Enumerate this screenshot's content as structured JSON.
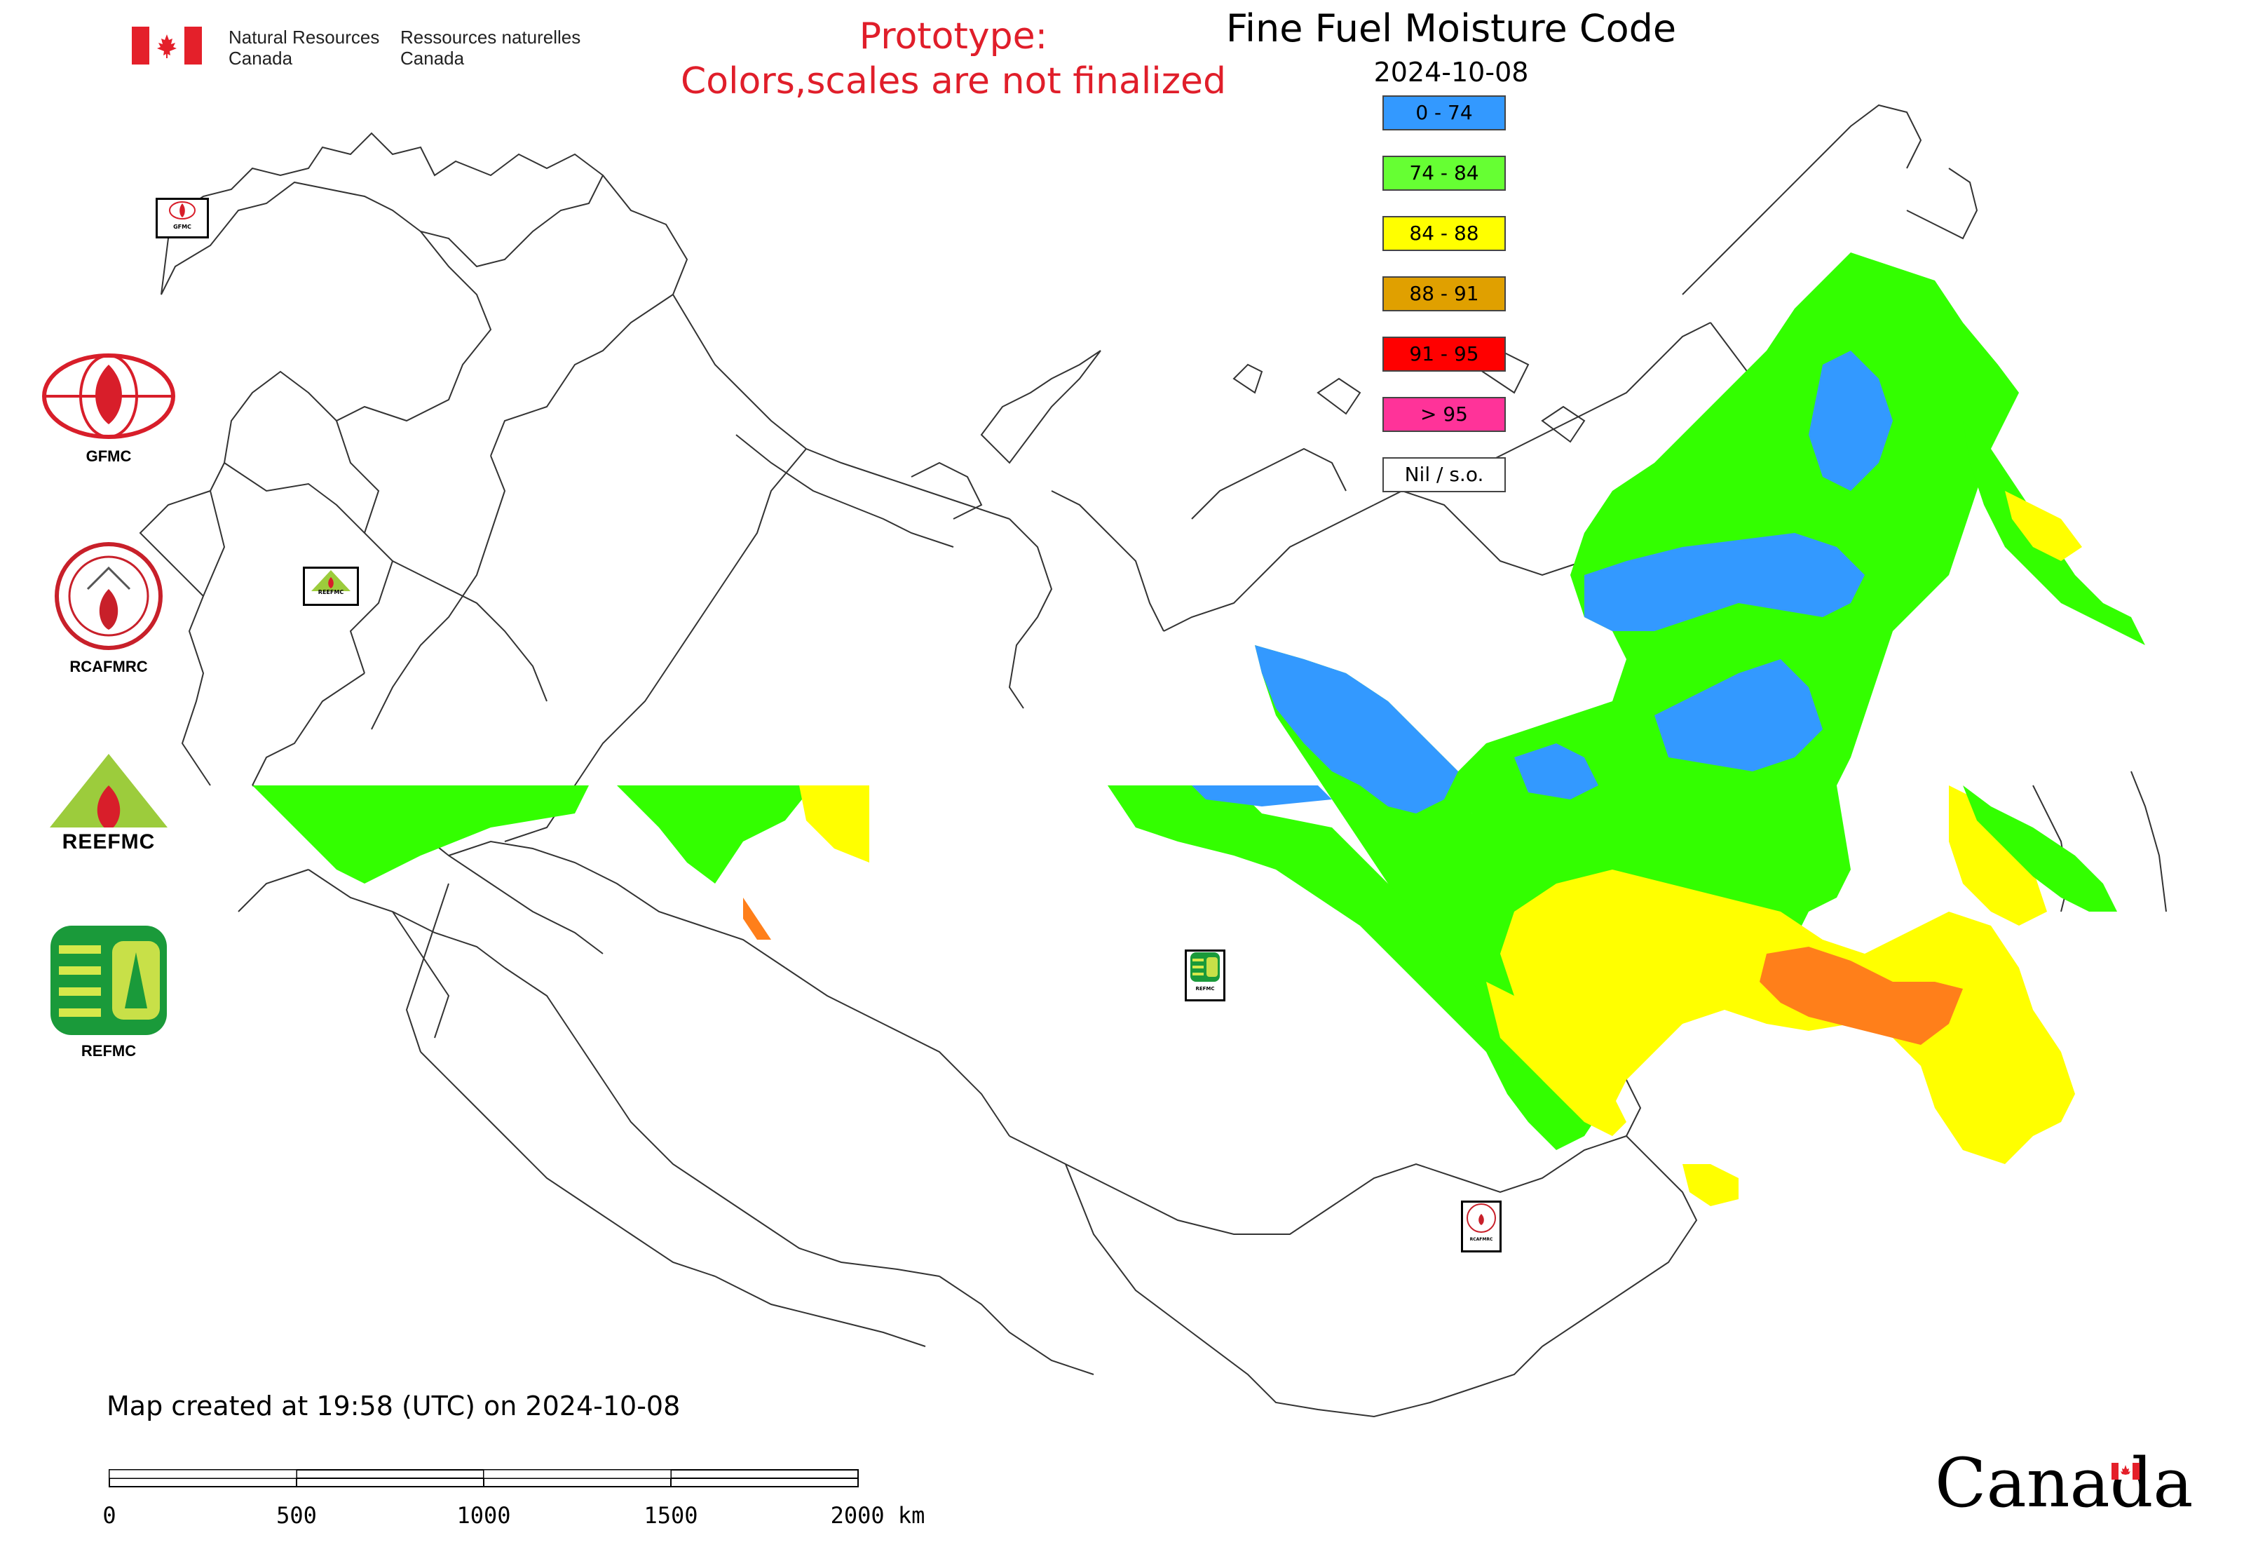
{
  "header": {
    "dept_en": [
      "Natural Resources",
      "Canada"
    ],
    "dept_fr": [
      "Ressources naturelles",
      "Canada"
    ],
    "prototype_line1": "Prototype:",
    "prototype_line2": "Colors,scales are not finalized",
    "title": "Fine Fuel Moisture Code",
    "date": "2024-10-08"
  },
  "legend": [
    {
      "label": "0 - 74",
      "color": "#3399ff"
    },
    {
      "label": "74 - 84",
      "color": "#66ff33"
    },
    {
      "label": "84 - 88",
      "color": "#ffff00"
    },
    {
      "label": "88 - 91",
      "color": "#e0a000"
    },
    {
      "label": "91 - 95",
      "color": "#ff0000"
    },
    {
      "label": "> 95",
      "color": "#ff3399"
    },
    {
      "label": "Nil / s.o.",
      "color": "#ffffff"
    }
  ],
  "logos": [
    {
      "caption": "GFMC",
      "icon": "gfmc-logo"
    },
    {
      "caption": "RCAFMRC",
      "icon": "rcafmrc-logo"
    },
    {
      "caption": "",
      "icon": "reefmc-logo",
      "wordmark": "REEFMC"
    },
    {
      "caption": "REFMC",
      "icon": "refmc-logo"
    }
  ],
  "map_markers": [
    {
      "icon": "gfmc-marker",
      "text": "GFMC"
    },
    {
      "icon": "reefmc-marker",
      "text": "REEFMC"
    },
    {
      "icon": "refmc-marker",
      "text": "REFMC"
    },
    {
      "icon": "rcafmrc-marker",
      "text": "RCAFMRC"
    }
  ],
  "footer": {
    "created": "Map created at 19:58 (UTC) on 2024-10-08",
    "scale_labels": [
      "0",
      "500",
      "1000",
      "1500",
      "2000 km"
    ],
    "wordmark": "Canada"
  },
  "colors": {
    "blue": "#3399ff",
    "green": "#33ff00",
    "yellow": "#ffff00",
    "orange": "#ff7f1a",
    "red": "#e01e2a"
  }
}
